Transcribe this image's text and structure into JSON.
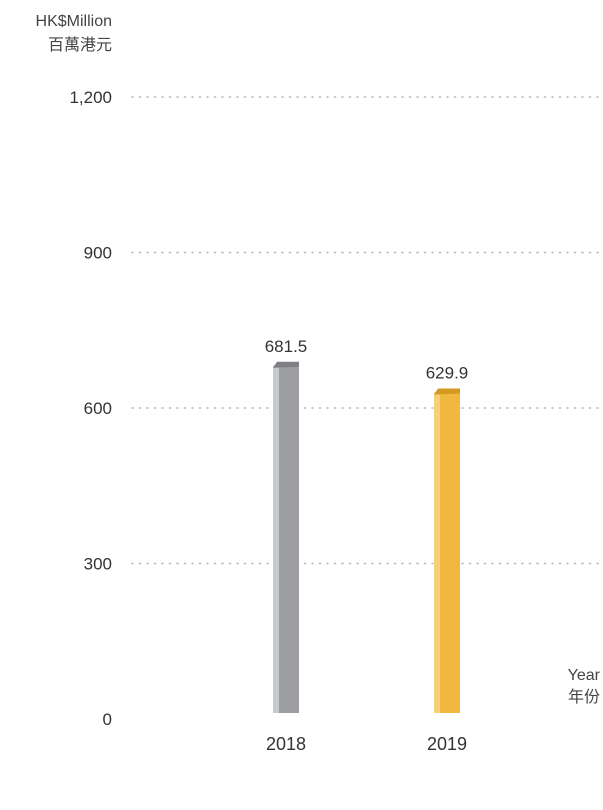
{
  "chart_data": {
    "type": "bar",
    "categories": [
      "2018",
      "2019"
    ],
    "values": [
      681.5,
      629.9
    ],
    "value_labels": [
      "681.5",
      "629.9"
    ],
    "y_unit_line1": "HK$Million",
    "y_unit_line2": "百萬港元",
    "x_unit_line1": "Year",
    "x_unit_line2": "年份",
    "ylim": [
      0,
      1200
    ],
    "yticks": [
      0,
      300,
      600,
      900,
      1200
    ],
    "ytick_labels": [
      "0",
      "300",
      "600",
      "900",
      "1,200"
    ],
    "grid": "dotted-horizontal",
    "bar_colors": [
      "#9d9ea1",
      "#f0b83f"
    ]
  }
}
